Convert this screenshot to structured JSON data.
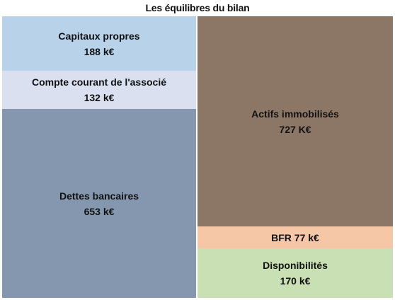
{
  "chart_data": {
    "type": "stacked-bar",
    "title": "Les équilibres du bilan",
    "unit": "k€",
    "columns": [
      {
        "blocks": [
          {
            "label": "Capitaux propres",
            "value": 188,
            "value_text": "188 k€",
            "color": "#b8d2ea"
          },
          {
            "label": "Compte courant de l'associé",
            "value": 132,
            "value_text": "132 k€",
            "color": "#dbe0f1"
          },
          {
            "label": "Dettes bancaires",
            "value": 653,
            "value_text": "653 k€",
            "color": "#8497af"
          }
        ]
      },
      {
        "blocks": [
          {
            "label": "Actifs immobilisés",
            "value": 727,
            "value_text": "727 K€",
            "color": "#8c7766"
          },
          {
            "label": "BFR 77 k€",
            "value": 77,
            "value_text": "",
            "color": "#f6c7a7"
          },
          {
            "label": "Disponibilités",
            "value": 170,
            "value_text": "170 k€",
            "color": "#c9e0b4"
          }
        ]
      }
    ]
  }
}
